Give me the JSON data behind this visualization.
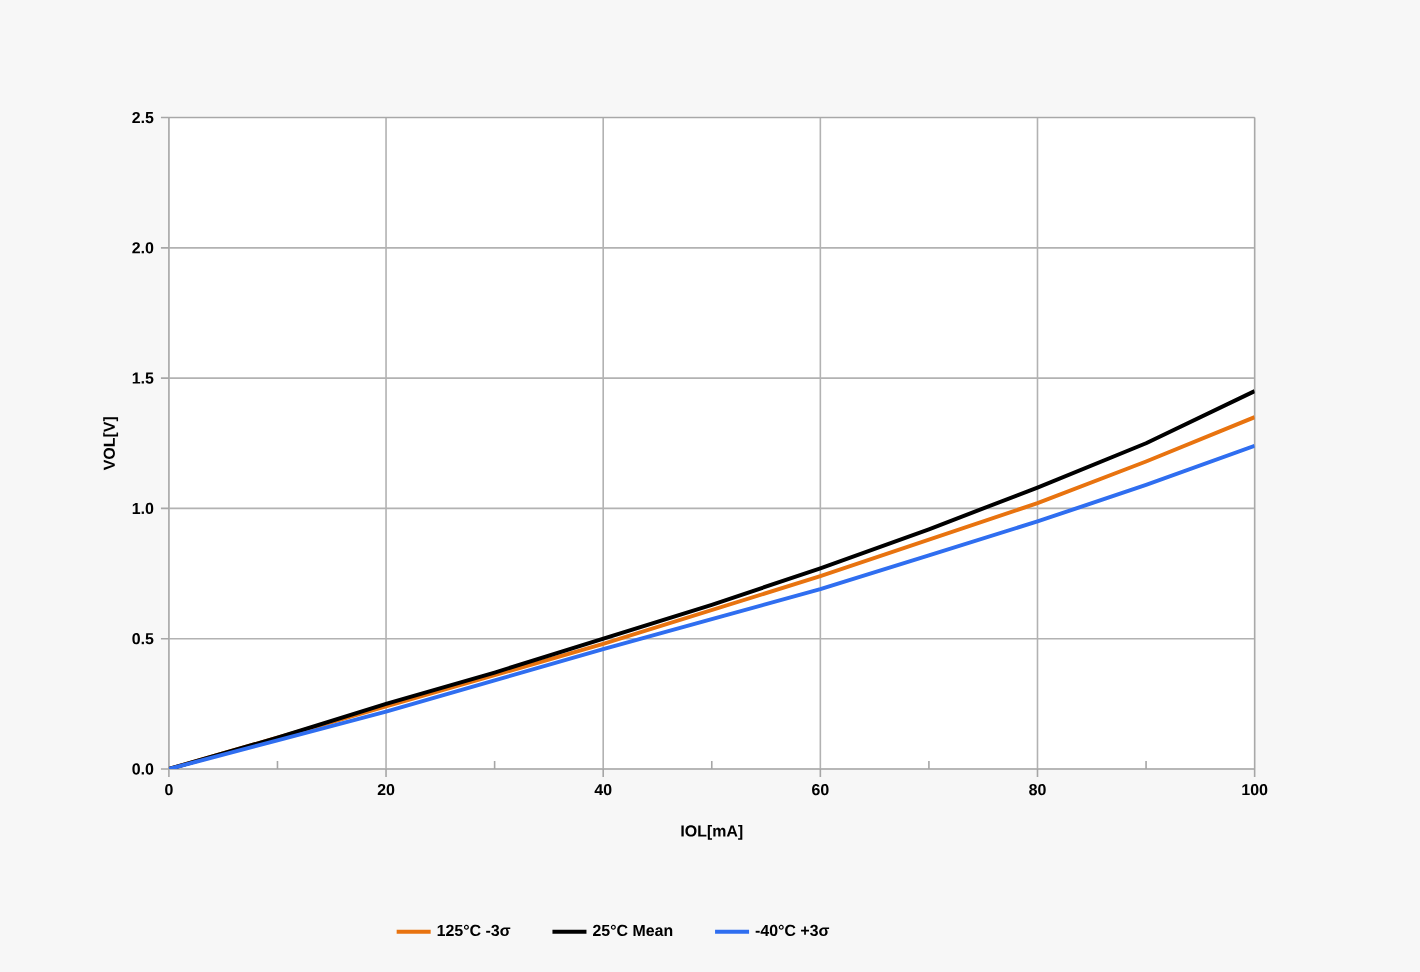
{
  "chart_data": {
    "type": "line",
    "xlabel": "IOL[mA]",
    "ylabel": "VOL[V]",
    "x": [
      0,
      10,
      20,
      30,
      40,
      50,
      60,
      70,
      80,
      90,
      100
    ],
    "series": [
      {
        "name": "125°C -3σ",
        "color": "#e8730f",
        "values": [
          0,
          0.12,
          0.24,
          0.36,
          0.48,
          0.61,
          0.74,
          0.88,
          1.02,
          1.18,
          1.35
        ]
      },
      {
        "name": "25°C Mean",
        "color": "#000000",
        "values": [
          0,
          0.12,
          0.25,
          0.37,
          0.5,
          0.63,
          0.77,
          0.92,
          1.08,
          1.25,
          1.45
        ]
      },
      {
        "name": "-40°C +3σ",
        "color": "#2f6ef0",
        "values": [
          0,
          0.11,
          0.22,
          0.34,
          0.46,
          0.575,
          0.69,
          0.82,
          0.95,
          1.09,
          1.24
        ]
      }
    ],
    "xlim": [
      0,
      100
    ],
    "ylim": [
      0,
      2.5
    ],
    "xticks": [
      0,
      {
        "value": 10,
        "label": null
      },
      20,
      {
        "value": 30,
        "label": null
      },
      40,
      {
        "value": 50,
        "label": null
      },
      60,
      {
        "value": 70,
        "label": null
      },
      80,
      {
        "value": 90,
        "label": null
      },
      100
    ],
    "yticks": [
      {
        "value": 0,
        "label": "0.0"
      },
      {
        "value": 0.5,
        "label": "0.5"
      },
      {
        "value": 1,
        "label": "1.0"
      },
      {
        "value": 1.5,
        "label": "1.5"
      },
      {
        "value": 2,
        "label": "2.0"
      },
      {
        "value": 2.5,
        "label": "2.5"
      }
    ],
    "grid": true,
    "legend": "bottom",
    "marker": "none",
    "line_style": "solid"
  }
}
